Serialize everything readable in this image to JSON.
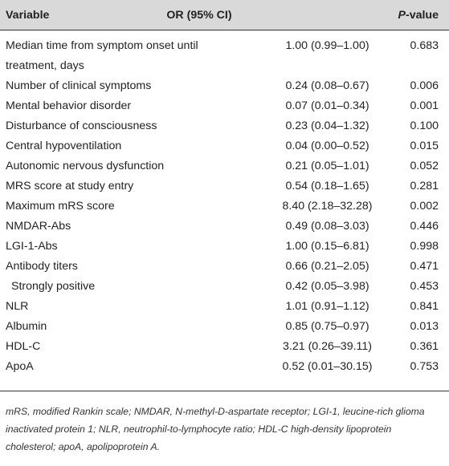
{
  "header": {
    "variable": "Variable",
    "or": "OR (95% CI)",
    "p_italic": "P",
    "p_rest": "-value"
  },
  "rows": [
    {
      "variable": "Median time from symptom onset until",
      "variable2": "treatment, days",
      "or": "1.00 (0.99–1.00)",
      "p": "0.683"
    },
    {
      "variable": "Number of clinical symptoms",
      "or": "0.24 (0.08–0.67)",
      "p": "0.006"
    },
    {
      "variable": "Mental behavior disorder",
      "or": "0.07 (0.01–0.34)",
      "p": "0.001"
    },
    {
      "variable": "Disturbance of consciousness",
      "or": "0.23 (0.04–1.32)",
      "p": "0.100"
    },
    {
      "variable": "Central hypoventilation",
      "or": "0.04 (0.00–0.52)",
      "p": "0.015"
    },
    {
      "variable": "Autonomic nervous dysfunction",
      "or": "0.21 (0.05–1.01)",
      "p": "0.052"
    },
    {
      "variable": "MRS score at study entry",
      "or": "0.54 (0.18–1.65)",
      "p": "0.281"
    },
    {
      "variable": "Maximum mRS score",
      "or": "8.40 (2.18–32.28)",
      "p": "0.002"
    },
    {
      "variable": "NMDAR-Abs",
      "or": "0.49 (0.08–3.03)",
      "p": "0.446"
    },
    {
      "variable": "LGI-1-Abs",
      "or": "1.00 (0.15–6.81)",
      "p": "0.998"
    },
    {
      "variable": "Antibody titers",
      "or": "0.66 (0.21–2.05)",
      "p": "0.471"
    },
    {
      "variable": "Strongly positive",
      "or": "0.42 (0.05–3.98)",
      "p": "0.453"
    },
    {
      "variable": "NLR",
      "or": "1.01 (0.91–1.12)",
      "p": "0.841"
    },
    {
      "variable": "Albumin",
      "or": "0.85 (0.75–0.97)",
      "p": "0.013"
    },
    {
      "variable": "HDL-C",
      "or": "3.21 (0.26–39.11)",
      "p": "0.361"
    },
    {
      "variable": "ApoA",
      "or": "0.52 (0.01–30.15)",
      "p": "0.753"
    }
  ],
  "footnote": "mRS, modified Rankin scale; NMDAR, N-methyl-D-aspartate receptor; LGI-1, leucine-rich glioma inactivated protein 1; NLR, neutrophil-to-lymphocyte ratio; HDL-C high-density lipoprotein cholesterol; apoA, apolipoprotein A."
}
